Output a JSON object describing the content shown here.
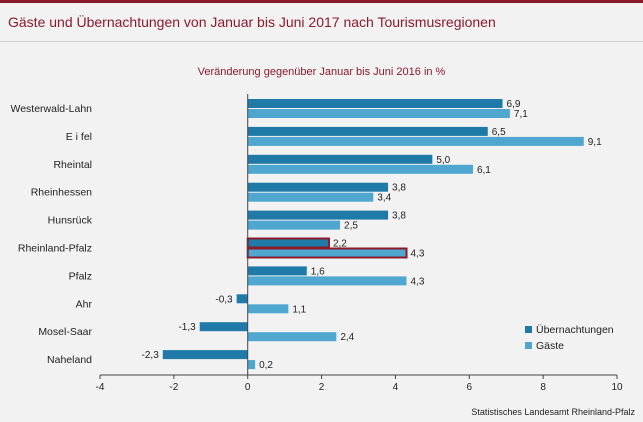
{
  "title": "Gäste und Übernachtungen von Januar bis Juni 2017 nach Tourismusregionen",
  "subtitle": "Veränderung gegenüber Januar bis Juni 2016 in %",
  "source": "Statistisches Landesamt Rheinland-Pfalz",
  "colors": {
    "uebernachtungen": "#1f7aa8",
    "gaeste": "#4fa7d0",
    "highlight": "#8b1a2b",
    "brand": "#8b1a2b"
  },
  "chart_data": {
    "type": "bar",
    "orientation": "horizontal",
    "categories": [
      "Westerwald-Lahn",
      "Eifel",
      "Rheintal",
      "Rheinhessen",
      "Hunsrück",
      "Rheinland-Pfalz",
      "Pfalz",
      "Ahr",
      "Mosel-Saar",
      "Naheland"
    ],
    "category_labels": [
      "Westerwald-Lahn",
      "E i fel",
      "Rheintal",
      "Rheinhessen",
      "Hunsrück",
      "Rheinland-Pfalz",
      "Pfalz",
      "Ahr",
      "Mosel-Saar",
      "Naheland"
    ],
    "series": [
      {
        "name": "Übernachtungen",
        "values": [
          6.9,
          6.5,
          5.0,
          3.8,
          3.8,
          2.2,
          1.6,
          -0.3,
          -1.3,
          -2.3
        ],
        "labels": [
          "6,9",
          "6,5",
          "5,0",
          "3,8",
          "3,8",
          "2,2",
          "1,6",
          "-0,3",
          "-1,3",
          "-2,3"
        ]
      },
      {
        "name": "Gäste",
        "values": [
          7.1,
          9.1,
          6.1,
          3.4,
          2.5,
          4.3,
          4.3,
          1.1,
          2.4,
          0.2
        ],
        "labels": [
          "7,1",
          "9,1",
          "6,1",
          "3,4",
          "2,5",
          "4,3",
          "4,3",
          "1,1",
          "2,4",
          "0,2"
        ]
      }
    ],
    "highlight_category": "Rheinland-Pfalz",
    "xlim": [
      -4,
      10
    ],
    "xticks": [
      -4,
      -2,
      0,
      2,
      4,
      6,
      8,
      10
    ],
    "grid": false,
    "legend": "bottom-right"
  }
}
